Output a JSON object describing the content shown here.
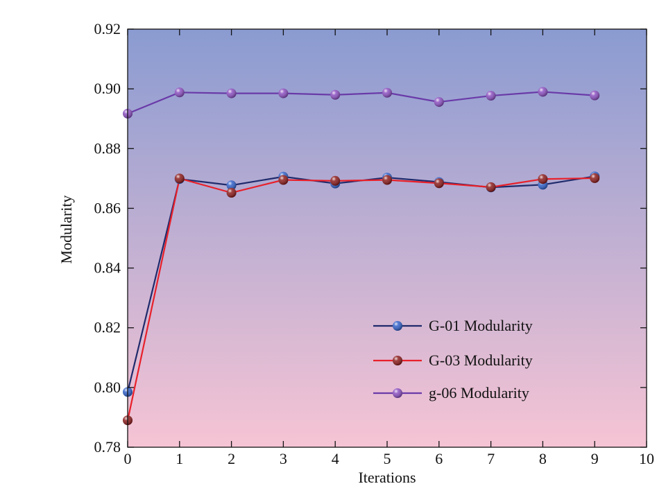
{
  "chart_data": {
    "type": "line",
    "title": "",
    "xlabel": "Iterations",
    "ylabel": "Modularity",
    "xlim": [
      0,
      10
    ],
    "ylim": [
      0.78,
      0.92
    ],
    "xticks": [
      0,
      1,
      2,
      3,
      4,
      5,
      6,
      7,
      8,
      9,
      10
    ],
    "yticks": [
      "0.78",
      "0.80",
      "0.82",
      "0.84",
      "0.86",
      "0.88",
      "0.90",
      "0.92"
    ],
    "grid": false,
    "legend_position": "bottom-right",
    "background_gradient": [
      "#8a9bd1",
      "#f6c4d4"
    ],
    "series": [
      {
        "name": "G-01 Modularity",
        "line_color": "#1f2a6b",
        "marker_color": "#2f5fc8",
        "x": [
          0,
          1,
          2,
          3,
          4,
          5,
          6,
          7,
          8,
          9
        ],
        "y": [
          0.7985,
          0.8698,
          0.8677,
          0.8706,
          0.8683,
          0.8703,
          0.8688,
          0.867,
          0.8679,
          0.8707
        ]
      },
      {
        "name": "G-03 Modularity",
        "line_color": "#e8202a",
        "marker_color": "#8b1a1a",
        "x": [
          0,
          1,
          2,
          3,
          4,
          5,
          6,
          7,
          8,
          9
        ],
        "y": [
          0.789,
          0.87,
          0.8652,
          0.8695,
          0.8692,
          0.8695,
          0.8684,
          0.8671,
          0.8698,
          0.8701
        ]
      },
      {
        "name": "g-06 Modularity",
        "line_color": "#6a3aa8",
        "marker_color": "#8a4ec0",
        "x": [
          0,
          1,
          2,
          3,
          4,
          5,
          6,
          7,
          8,
          9
        ],
        "y": [
          0.8917,
          0.8988,
          0.8985,
          0.8985,
          0.898,
          0.8987,
          0.8956,
          0.8977,
          0.899,
          0.8978
        ]
      }
    ]
  }
}
